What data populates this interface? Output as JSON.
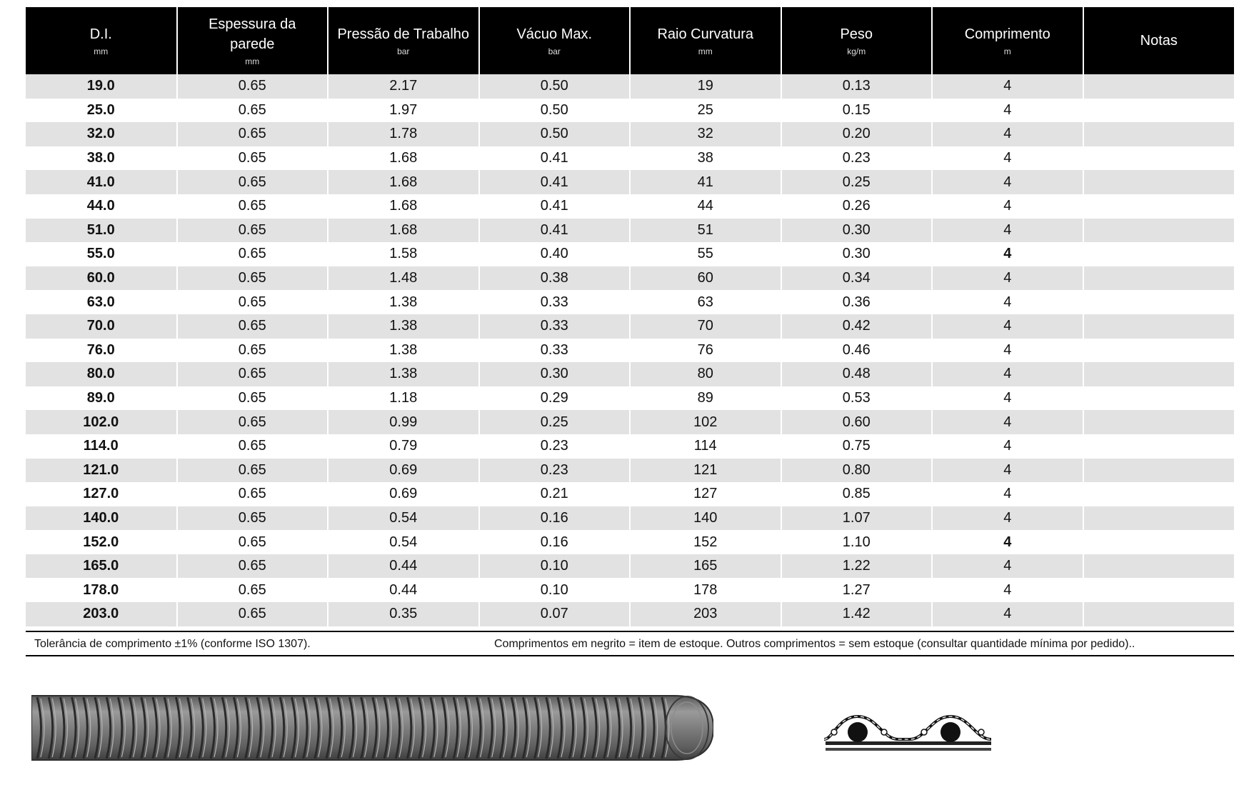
{
  "table": {
    "headers": [
      {
        "label": "D.I.",
        "unit": "mm"
      },
      {
        "label": "Espessura da parede",
        "unit": "mm"
      },
      {
        "label": "Pressão de Trabalho",
        "unit": "bar"
      },
      {
        "label": "Vácuo Max.",
        "unit": "bar"
      },
      {
        "label": "Raio Curvatura",
        "unit": "mm"
      },
      {
        "label": "Peso",
        "unit": "kg/m"
      },
      {
        "label": "Comprimento",
        "unit": "m"
      },
      {
        "label": "Notas",
        "unit": ""
      }
    ],
    "rows": [
      [
        "19.0",
        "0.65",
        "2.17",
        "0.50",
        "19",
        "0.13",
        "4",
        ""
      ],
      [
        "25.0",
        "0.65",
        "1.97",
        "0.50",
        "25",
        "0.15",
        "4",
        ""
      ],
      [
        "32.0",
        "0.65",
        "1.78",
        "0.50",
        "32",
        "0.20",
        "4",
        ""
      ],
      [
        "38.0",
        "0.65",
        "1.68",
        "0.41",
        "38",
        "0.23",
        "4",
        ""
      ],
      [
        "41.0",
        "0.65",
        "1.68",
        "0.41",
        "41",
        "0.25",
        "4",
        ""
      ],
      [
        "44.0",
        "0.65",
        "1.68",
        "0.41",
        "44",
        "0.26",
        "4",
        ""
      ],
      [
        "51.0",
        "0.65",
        "1.68",
        "0.41",
        "51",
        "0.30",
        "4",
        ""
      ],
      [
        "55.0",
        "0.65",
        "1.58",
        "0.40",
        "55",
        "0.30",
        "4",
        ""
      ],
      [
        "60.0",
        "0.65",
        "1.48",
        "0.38",
        "60",
        "0.34",
        "4",
        ""
      ],
      [
        "63.0",
        "0.65",
        "1.38",
        "0.33",
        "63",
        "0.36",
        "4",
        ""
      ],
      [
        "70.0",
        "0.65",
        "1.38",
        "0.33",
        "70",
        "0.42",
        "4",
        ""
      ],
      [
        "76.0",
        "0.65",
        "1.38",
        "0.33",
        "76",
        "0.46",
        "4",
        ""
      ],
      [
        "80.0",
        "0.65",
        "1.38",
        "0.30",
        "80",
        "0.48",
        "4",
        ""
      ],
      [
        "89.0",
        "0.65",
        "1.18",
        "0.29",
        "89",
        "0.53",
        "4",
        ""
      ],
      [
        "102.0",
        "0.65",
        "0.99",
        "0.25",
        "102",
        "0.60",
        "4",
        ""
      ],
      [
        "114.0",
        "0.65",
        "0.79",
        "0.23",
        "114",
        "0.75",
        "4",
        ""
      ],
      [
        "121.0",
        "0.65",
        "0.69",
        "0.23",
        "121",
        "0.80",
        "4",
        ""
      ],
      [
        "127.0",
        "0.65",
        "0.69",
        "0.21",
        "127",
        "0.85",
        "4",
        ""
      ],
      [
        "140.0",
        "0.65",
        "0.54",
        "0.16",
        "140",
        "1.07",
        "4",
        ""
      ],
      [
        "152.0",
        "0.65",
        "0.54",
        "0.16",
        "152",
        "1.10",
        "4",
        ""
      ],
      [
        "165.0",
        "0.65",
        "0.44",
        "0.10",
        "165",
        "1.22",
        "4",
        ""
      ],
      [
        "178.0",
        "0.65",
        "0.44",
        "0.10",
        "178",
        "1.27",
        "4",
        ""
      ],
      [
        "203.0",
        "0.65",
        "0.35",
        "0.07",
        "203",
        "1.42",
        "4",
        ""
      ]
    ],
    "bold_length_rows": [
      7,
      19
    ]
  },
  "footnotes": {
    "left": "Tolerância de comprimento ±1% (conforme ISO 1307).",
    "right": "Comprimentos em negrito = item de estoque. Outros comprimentos = sem estoque (consultar quantidade mínima por pedido).."
  },
  "colors": {
    "header_bg": "#000000",
    "row_stripe": "#e2e2e2",
    "hose_gray": "#7a7a7a"
  },
  "images": {
    "hose": "corrugated-hose-photo",
    "profile": "hose-wall-profile-diagram"
  }
}
